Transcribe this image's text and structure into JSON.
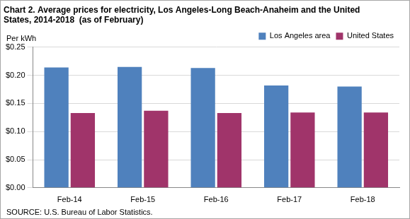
{
  "chart_data": {
    "type": "bar",
    "title": [
      "Chart 2. Average prices for electricity, Los Angeles-Long Beach-Anaheim and the United",
      "States, 2014-2018  (as of February)"
    ],
    "y_label": "Per kWh",
    "source": "SOURCE: U.S. Bureau of Labor Statistics.",
    "categories": [
      "Feb-14",
      "Feb-15",
      "Feb-16",
      "Feb-17",
      "Feb-18"
    ],
    "series": [
      {
        "name": "Los Angeles area",
        "color": "#4f81bd",
        "values": [
          0.214,
          0.215,
          0.213,
          0.182,
          0.18
        ]
      },
      {
        "name": "United States",
        "color": "#a0346a",
        "values": [
          0.133,
          0.137,
          0.133,
          0.134,
          0.134
        ]
      }
    ],
    "ylim": [
      0,
      0.25
    ],
    "yticks": [
      {
        "value": 0,
        "label": "$0.00"
      },
      {
        "value": 0.05,
        "label": "$0.05"
      },
      {
        "value": 0.1,
        "label": "$0.10"
      },
      {
        "value": 0.15,
        "label": "$0.15"
      },
      {
        "value": 0.2,
        "label": "$0.20"
      },
      {
        "value": 0.25,
        "label": "$0.25"
      }
    ],
    "grid": true,
    "legend": "top-right"
  }
}
